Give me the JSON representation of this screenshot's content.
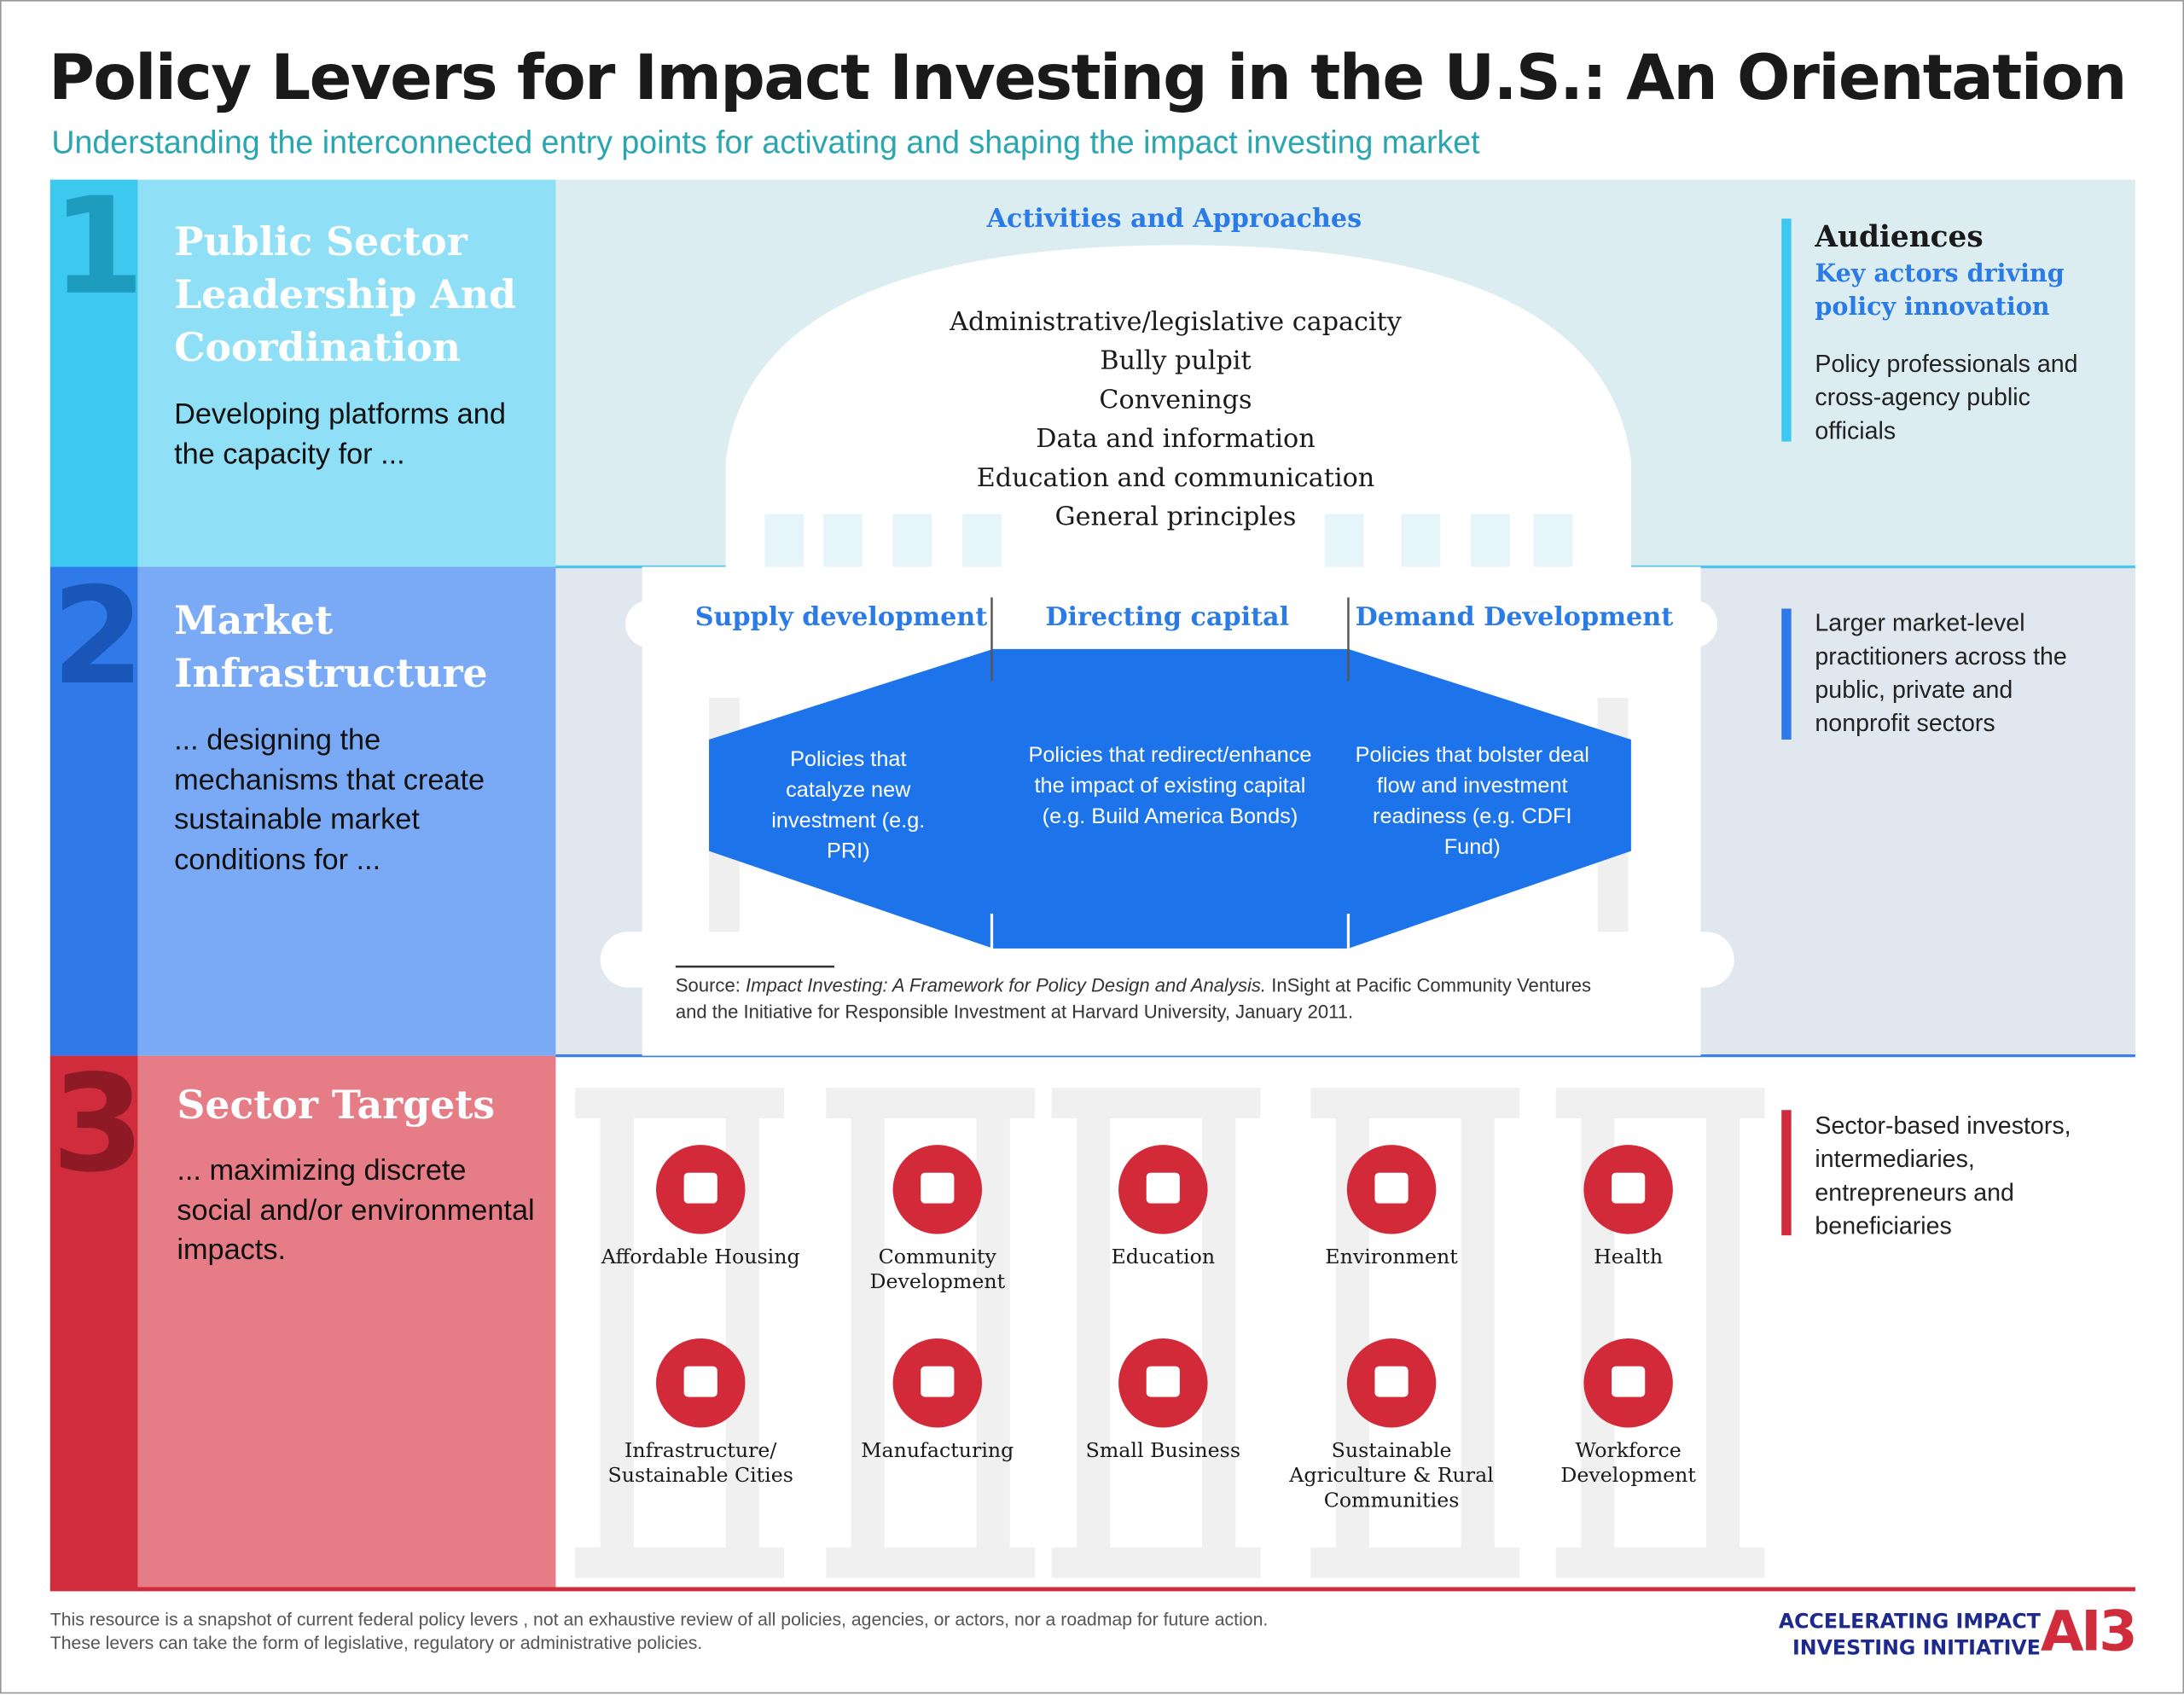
{
  "header": {
    "title": "Policy Levers for Impact Investing in the U.S.: An Orientation",
    "subtitle": "Understanding the interconnected entry points for activating and shaping the impact investing market"
  },
  "rows": [
    {
      "number": "1",
      "title": "Public Sector Leadership And Coordination",
      "description": "Developing platforms and the capacity for ...",
      "audience": "Policy professionals and cross-agency public officials"
    },
    {
      "number": "2",
      "title": "Market Infrastructure",
      "description": "... designing the mechanisms that create sustainable market conditions for ...",
      "audience": "Larger market-level practitioners across the public, private and nonprofit sectors"
    },
    {
      "number": "3",
      "title": "Sector Targets",
      "description": "... maximizing discrete social and/or environmental impacts.",
      "audience": "Sector-based investors, intermediaries, entrepreneurs and beneficiaries"
    }
  ],
  "activities": {
    "title": "Activities and Approaches",
    "items": [
      "Administrative/legislative capacity",
      "Bully pulpit",
      "Convenings",
      "Data and information",
      "Education and communication",
      "General principles"
    ]
  },
  "audiences": {
    "title": "Audiences",
    "subtitle": "Key actors driving policy innovation"
  },
  "market": {
    "columns": [
      {
        "title": "Supply development",
        "text": "Policies that catalyze new investment (e.g. PRI)"
      },
      {
        "title": "Directing capital",
        "text": "Policies that redirect/enhance the impact of existing capital (e.g. Build America Bonds)"
      },
      {
        "title": "Demand Development",
        "text": "Policies that bolster deal flow and investment readiness (e.g. CDFI Fund)"
      }
    ],
    "source": {
      "prefix": "Source:",
      "work": "Impact Investing: A Framework for Policy Design and Analysis.",
      "rest": "InSight at Pacific Community Ventures and the Initiative for Responsible Investment at Harvard University, January 2011."
    }
  },
  "sectors": [
    "Affordable Housing",
    "Community Development",
    "Education",
    "Environment",
    "Health",
    "Infrastructure/ Sustainable Cities",
    "Manufacturing",
    "Small Business",
    "Sustainable Agriculture & Rural Communities",
    "Workforce Development"
  ],
  "footer": {
    "note": [
      "This resource is a snapshot of current federal policy levers , not an exhaustive review of all policies, agencies, or actors, nor a roadmap for future action.",
      "These levers  can take the form of legislative, regulatory or administrative  policies."
    ],
    "logo": {
      "line1": "ACCELERATING IMPACT",
      "line2": "INVESTING INITIATIVE",
      "mark": "AI3"
    }
  }
}
